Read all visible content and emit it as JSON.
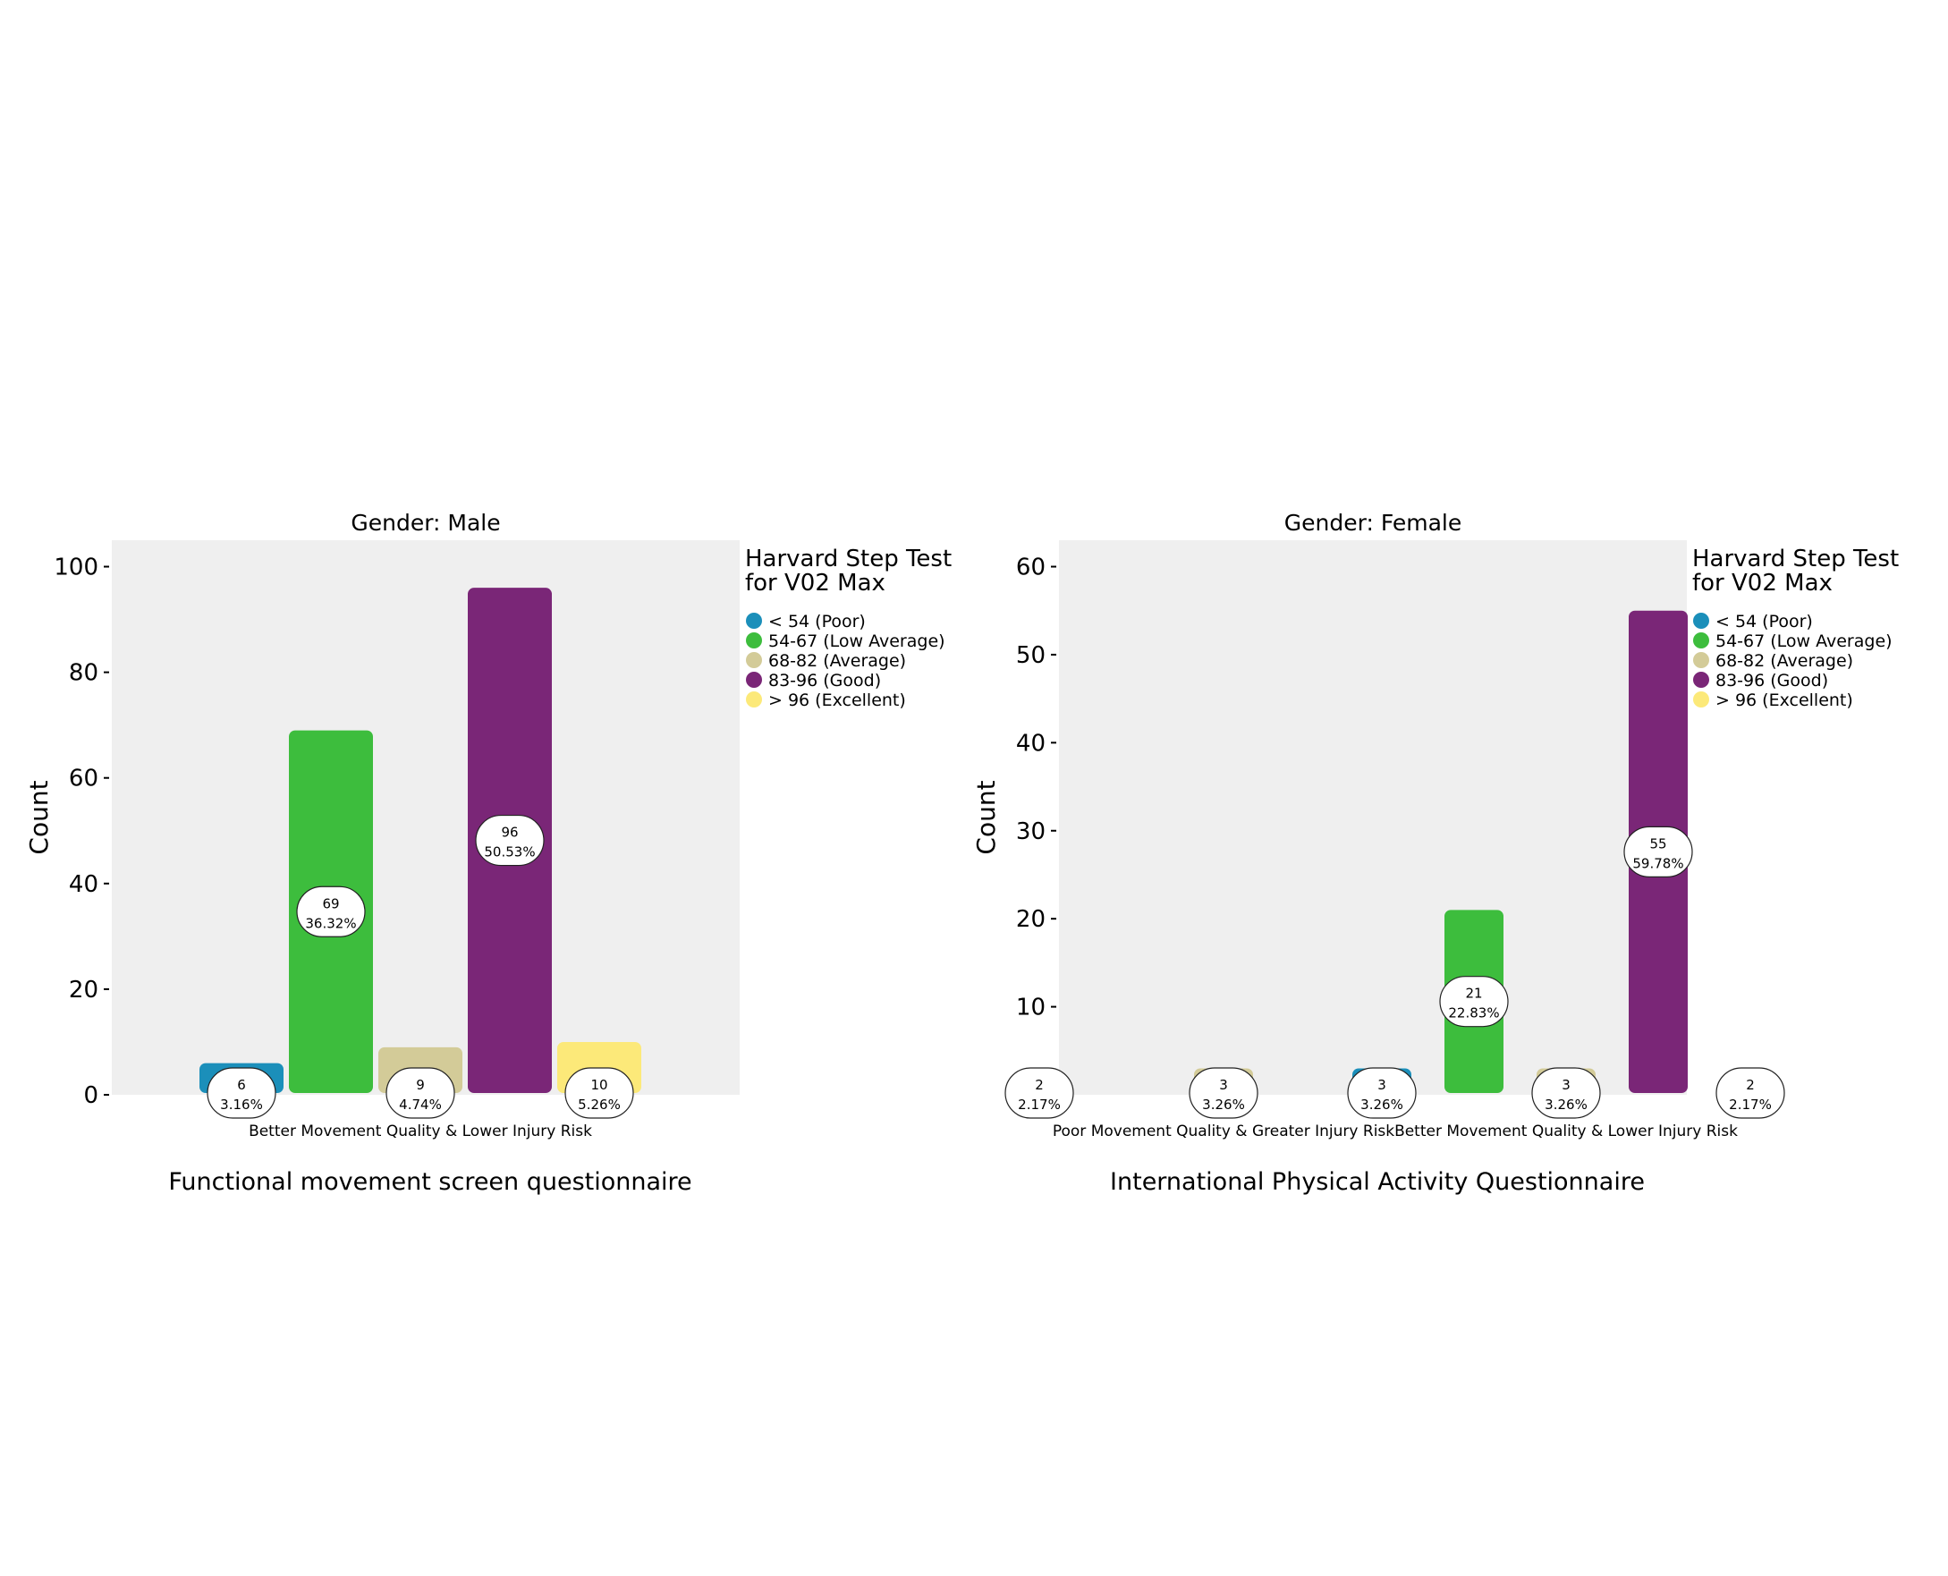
{
  "colors": {
    "< 54 (Poor)": "#1b8fba",
    "54-67 (Low Average)": "#3dbd3d",
    "68-82 (Average)": "#d3cb98",
    "83-96 (Good)": "#7a2677",
    "> 96 (Excellent)": "#fce979",
    "panel_bg": "#efefef"
  },
  "legend": {
    "title_line1": "Harvard Step Test",
    "title_line2": "for V02 Max",
    "items": [
      "< 54 (Poor)",
      "54-67 (Low Average)",
      "68-82 (Average)",
      "83-96 (Good)",
      "> 96 (Excellent)"
    ]
  },
  "chart_data": [
    {
      "type": "bar",
      "title": "Gender: Male",
      "xlabel": "Functional movement screen questionnaire",
      "ylabel": "Count",
      "ylim": [
        0,
        105
      ],
      "yticks": [
        0,
        20,
        40,
        60,
        80,
        100
      ],
      "categories": [
        "Better Movement Quality & Lower Injury Risk"
      ],
      "grid": false,
      "legend_position": "right",
      "bars": [
        {
          "category": "Better Movement Quality & Lower Injury Risk",
          "series": "< 54 (Poor)",
          "value": 6,
          "label_count": "6",
          "label_pct": "3.16%"
        },
        {
          "category": "Better Movement Quality & Lower Injury Risk",
          "series": "54-67 (Low Average)",
          "value": 69,
          "label_count": "69",
          "label_pct": "36.32%"
        },
        {
          "category": "Better Movement Quality & Lower Injury Risk",
          "series": "68-82 (Average)",
          "value": 9,
          "label_count": "9",
          "label_pct": "4.74%"
        },
        {
          "category": "Better Movement Quality & Lower Injury Risk",
          "series": "83-96 (Good)",
          "value": 96,
          "label_count": "96",
          "label_pct": "50.53%"
        },
        {
          "category": "Better Movement Quality & Lower Injury Risk",
          "series": "> 96 (Excellent)",
          "value": 10,
          "label_count": "10",
          "label_pct": "5.26%"
        }
      ]
    },
    {
      "type": "bar",
      "title": "Gender: Female",
      "xlabel": "International Physical Activity Questionnaire",
      "ylabel": "Count",
      "ylim": [
        0,
        63
      ],
      "yticks": [
        0,
        10,
        20,
        30,
        40,
        50,
        60
      ],
      "categories": [
        "Poor Movement Quality & Greater Injury Risk",
        "Better Movement Quality & Lower Injury Risk"
      ],
      "grid": false,
      "legend_position": "right",
      "bars": [
        {
          "category": "Poor Movement Quality & Greater Injury Risk",
          "series": "< 54 (Poor)",
          "value": 2,
          "label_count": "2",
          "label_pct": "2.17%"
        },
        {
          "category": "Poor Movement Quality & Greater Injury Risk",
          "series": "68-82 (Average)",
          "value": 3,
          "label_count": "3",
          "label_pct": "3.26%"
        },
        {
          "category": "Better Movement Quality & Lower Injury Risk",
          "series": "< 54 (Poor)",
          "value": 3,
          "label_count": "3",
          "label_pct": "3.26%"
        },
        {
          "category": "Better Movement Quality & Lower Injury Risk",
          "series": "54-67 (Low Average)",
          "value": 21,
          "label_count": "21",
          "label_pct": "22.83%"
        },
        {
          "category": "Better Movement Quality & Lower Injury Risk",
          "series": "68-82 (Average)",
          "value": 3,
          "label_count": "3",
          "label_pct": "3.26%"
        },
        {
          "category": "Better Movement Quality & Lower Injury Risk",
          "series": "83-96 (Good)",
          "value": 55,
          "label_count": "55",
          "label_pct": "59.78%"
        },
        {
          "category": "Better Movement Quality & Lower Injury Risk",
          "series": "> 96 (Excellent)",
          "value": 2,
          "label_count": "2",
          "label_pct": "2.17%"
        }
      ]
    }
  ]
}
